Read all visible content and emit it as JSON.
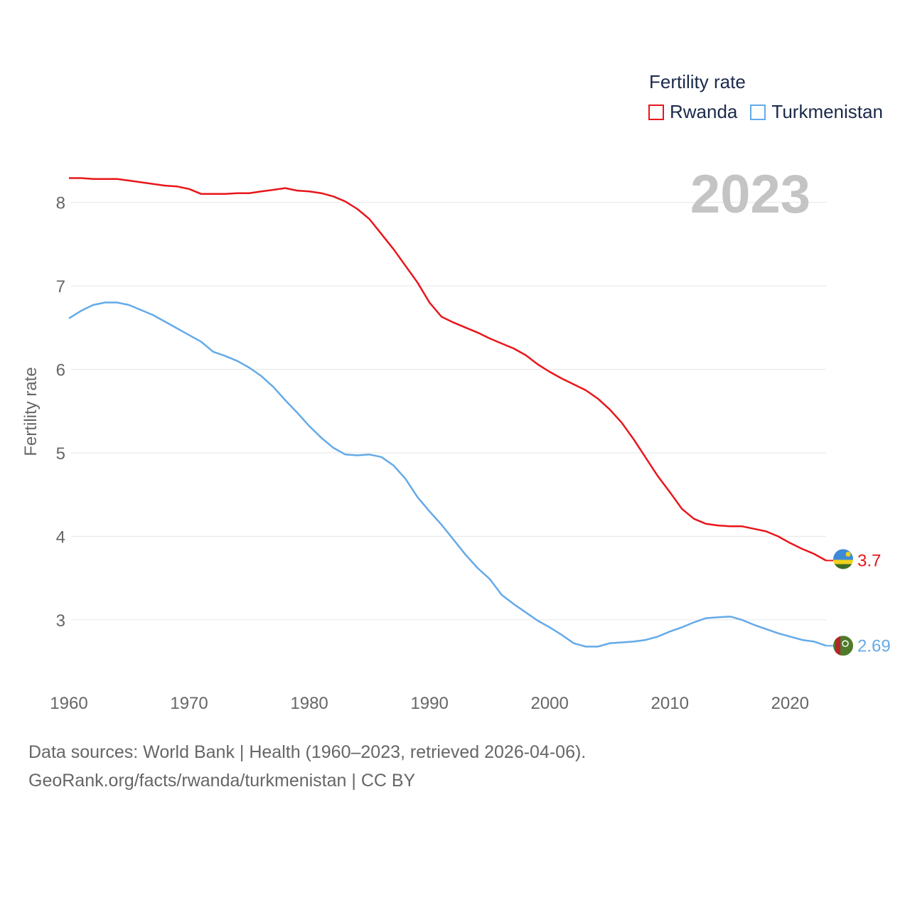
{
  "legend": {
    "title": "Fertility rate",
    "items": [
      {
        "label": "Rwanda",
        "color": "#e8161b"
      },
      {
        "label": "Turkmenistan",
        "color": "#64aae8"
      }
    ]
  },
  "footer": {
    "line1": "Data sources: World Bank | Health (1960–2023, retrieved 2026-04-06).",
    "line2": "GeoRank.org/facts/rwanda/turkmenistan | CC BY"
  },
  "chart_data": {
    "type": "line",
    "title": "Fertility rate",
    "year_label": "2023",
    "xlabel": "",
    "ylabel": "Fertility rate",
    "xlim": [
      1960,
      2023
    ],
    "ylim": [
      2.42,
      8.72
    ],
    "xticks": [
      1960,
      1970,
      1980,
      1990,
      2000,
      2010,
      2020
    ],
    "yticks": [
      3,
      4,
      5,
      6,
      7,
      8
    ],
    "grid": true,
    "legend_position": "top-right",
    "x": [
      1960,
      1961,
      1962,
      1963,
      1964,
      1965,
      1966,
      1967,
      1968,
      1969,
      1970,
      1971,
      1972,
      1973,
      1974,
      1975,
      1976,
      1977,
      1978,
      1979,
      1980,
      1981,
      1982,
      1983,
      1984,
      1985,
      1986,
      1987,
      1988,
      1989,
      1990,
      1991,
      1992,
      1993,
      1994,
      1995,
      1996,
      1997,
      1998,
      1999,
      2000,
      2001,
      2002,
      2003,
      2004,
      2005,
      2006,
      2007,
      2008,
      2009,
      2010,
      2011,
      2012,
      2013,
      2014,
      2015,
      2016,
      2017,
      2018,
      2019,
      2020,
      2021,
      2022,
      2023
    ],
    "series": [
      {
        "name": "Rwanda",
        "color": "#e8161b",
        "end_label": "3.7",
        "values": [
          8.29,
          8.29,
          8.28,
          8.28,
          8.28,
          8.26,
          8.24,
          8.22,
          8.2,
          8.19,
          8.16,
          8.1,
          8.1,
          8.1,
          8.11,
          8.11,
          8.13,
          8.15,
          8.17,
          8.14,
          8.13,
          8.11,
          8.07,
          8.01,
          7.92,
          7.8,
          7.62,
          7.44,
          7.24,
          7.04,
          6.8,
          6.63,
          6.56,
          6.5,
          6.44,
          6.37,
          6.31,
          6.25,
          6.17,
          6.06,
          5.97,
          5.89,
          5.82,
          5.75,
          5.65,
          5.52,
          5.36,
          5.16,
          4.94,
          4.72,
          4.53,
          4.33,
          4.21,
          4.15,
          4.13,
          4.12,
          4.12,
          4.09,
          4.06,
          4.0,
          3.92,
          3.85,
          3.79,
          3.71
        ]
      },
      {
        "name": "Turkmenistan",
        "color": "#64aae8",
        "end_label": "2.69",
        "values": [
          6.61,
          6.7,
          6.77,
          6.8,
          6.8,
          6.77,
          6.71,
          6.65,
          6.57,
          6.49,
          6.41,
          6.33,
          6.21,
          6.16,
          6.1,
          6.02,
          5.92,
          5.79,
          5.63,
          5.48,
          5.32,
          5.18,
          5.06,
          4.98,
          4.97,
          4.98,
          4.95,
          4.85,
          4.69,
          4.47,
          4.3,
          4.14,
          3.96,
          3.78,
          3.62,
          3.49,
          3.3,
          3.19,
          3.09,
          2.99,
          2.91,
          2.82,
          2.72,
          2.68,
          2.68,
          2.72,
          2.73,
          2.74,
          2.76,
          2.8,
          2.86,
          2.91,
          2.97,
          3.02,
          3.03,
          3.04,
          3.0,
          2.94,
          2.89,
          2.84,
          2.8,
          2.76,
          2.74,
          2.69
        ]
      }
    ]
  }
}
